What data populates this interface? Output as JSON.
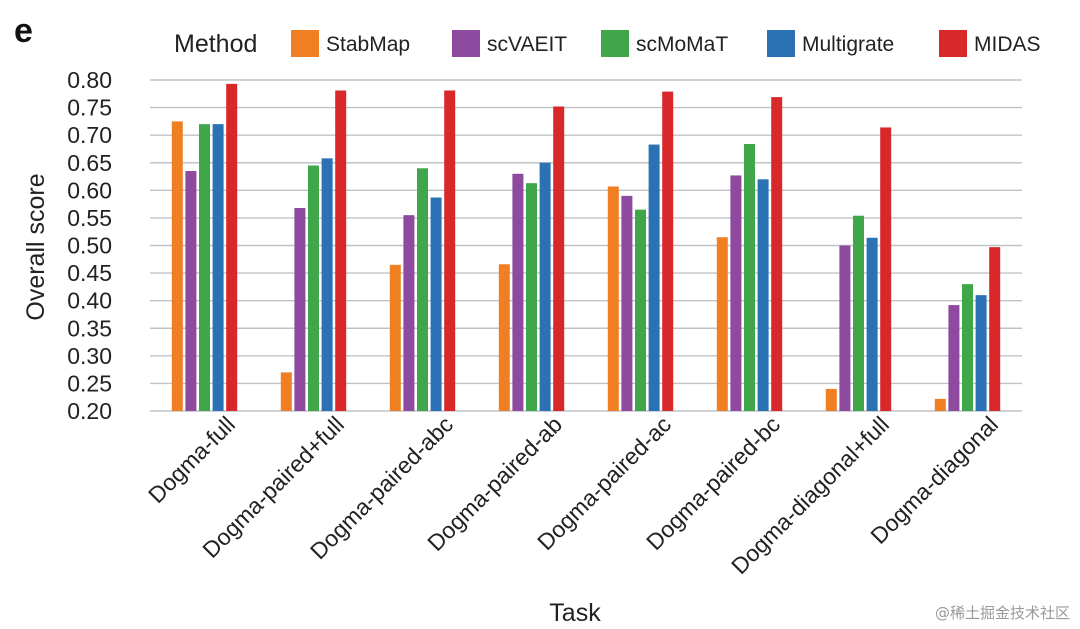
{
  "panel_label": "e",
  "watermark": "@稀土掘金技术社区",
  "chart_data": {
    "type": "bar",
    "title": "",
    "xlabel": "Task",
    "ylabel": "Overall score",
    "ylim": [
      0.2,
      0.8
    ],
    "yticks": [
      0.2,
      0.25,
      0.3,
      0.35,
      0.4,
      0.45,
      0.5,
      0.55,
      0.6,
      0.65,
      0.7,
      0.75,
      0.8
    ],
    "ytick_labels": [
      "0.20",
      "0.25",
      "0.30",
      "0.35",
      "0.40",
      "0.45",
      "0.50",
      "0.55",
      "0.60",
      "0.65",
      "0.70",
      "0.75",
      "0.80"
    ],
    "grid": "horizontal",
    "legend_title": "Method",
    "legend_position": "top",
    "categories": [
      "Dogma-full",
      "Dogma-paired+full",
      "Dogma-paired-abc",
      "Dogma-paired-ab",
      "Dogma-paired-ac",
      "Dogma-paired-bc",
      "Dogma-diagonal+full",
      "Dogma-diagonal"
    ],
    "series": [
      {
        "name": "StabMap",
        "color": "#F07F24",
        "values": [
          0.725,
          0.27,
          0.465,
          0.466,
          0.607,
          0.515,
          0.24,
          0.222
        ]
      },
      {
        "name": "scVAEIT",
        "color": "#8E4A9E",
        "values": [
          0.635,
          0.568,
          0.555,
          0.63,
          0.59,
          0.627,
          0.5,
          0.392
        ]
      },
      {
        "name": "scMoMaT",
        "color": "#3FA74A",
        "values": [
          0.72,
          0.645,
          0.64,
          0.613,
          0.565,
          0.684,
          0.554,
          0.43
        ]
      },
      {
        "name": "Multigrate",
        "color": "#2B72B4",
        "values": [
          0.72,
          0.658,
          0.587,
          0.65,
          0.683,
          0.62,
          0.514,
          0.41
        ]
      },
      {
        "name": "MIDAS",
        "color": "#D9282A",
        "values": [
          0.793,
          0.781,
          0.781,
          0.752,
          0.779,
          0.769,
          0.714,
          0.497
        ]
      }
    ]
  }
}
